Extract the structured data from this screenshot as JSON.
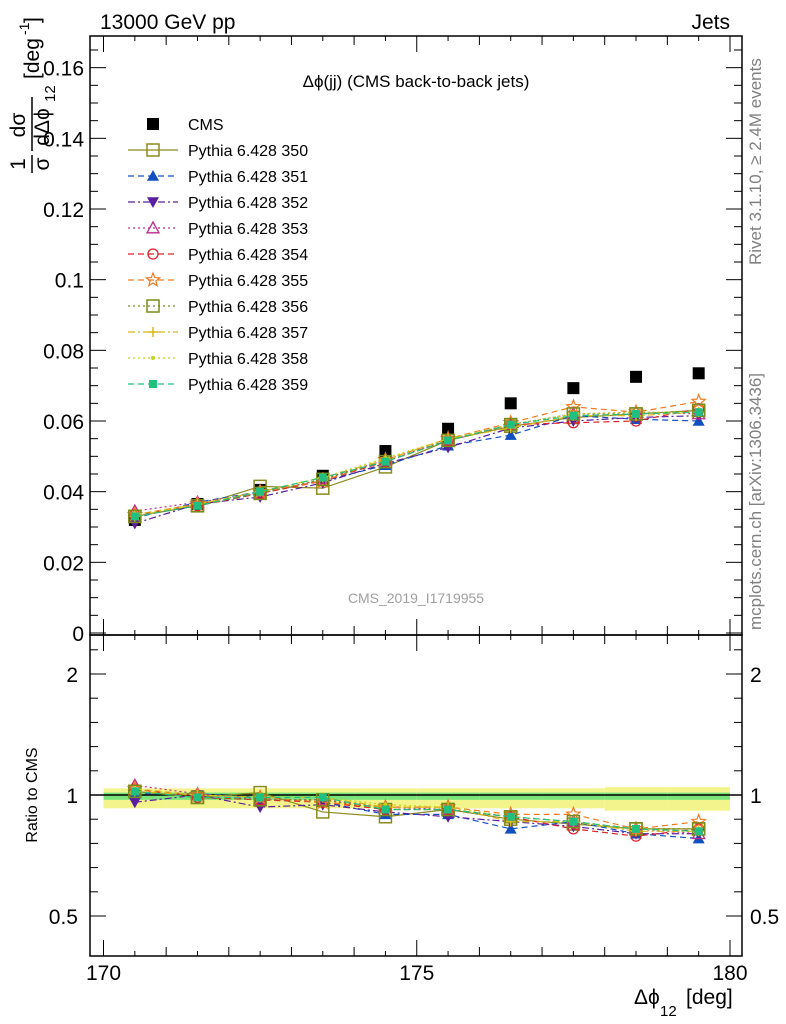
{
  "header": {
    "left": "13000 GeV pp",
    "right": "Jets"
  },
  "side_labels": {
    "rivet": "Rivet 3.1.10, ≥ 2.4M events",
    "mcplots": "mcplots.cern.ch [arXiv:1306.3436]"
  },
  "chart_data": [
    {
      "type": "scatter",
      "title": "Δϕ(jj) (CMS back-to-back jets)",
      "watermark": "CMS_2019_I1719955",
      "ylabel": "1/σ dσ/dΔϕ12 [deg⁻¹]",
      "ylabel_parts": {
        "num": "1",
        "den": "σ",
        "dnum": "dσ",
        "dden": "dΔϕ",
        "sub": "12",
        "unit": "[deg",
        "exp": "-1",
        "close": "]"
      },
      "xlabel": "Δϕ12 [deg]",
      "xlabel_parts": {
        "main": "Δϕ",
        "sub": "12",
        "unit": "[deg]"
      },
      "xlim": [
        170,
        180
      ],
      "ylim": [
        0,
        0.17
      ],
      "x_ticks": [
        "170",
        "175",
        "180"
      ],
      "y_ticks": [
        "0",
        "0.02",
        "0.04",
        "0.06",
        "0.08",
        "0.1",
        "0.12",
        "0.14",
        "0.16"
      ],
      "legend_position": "top-left",
      "x": [
        170.5,
        171.5,
        172.5,
        173.5,
        174.5,
        175.5,
        176.5,
        177.5,
        178.5,
        179.5
      ],
      "series": [
        {
          "name": "CMS",
          "color": "#000000",
          "marker": "square-filled",
          "line": "none",
          "values": [
            0.032,
            0.0365,
            0.0405,
            0.0445,
            0.0515,
            0.0578,
            0.065,
            0.0693,
            0.0725,
            0.0735
          ]
        },
        {
          "name": "Pythia 6.428 350",
          "color": "#8b8b1e",
          "marker": "square-open",
          "line": "solid",
          "values": [
            0.033,
            0.036,
            0.0415,
            0.041,
            0.047,
            0.0545,
            0.0585,
            0.061,
            0.062,
            0.063
          ]
        },
        {
          "name": "Pythia 6.428 351",
          "color": "#1050c0",
          "marker": "triangle-up-filled",
          "line": "dashed",
          "values": [
            0.0325,
            0.037,
            0.04,
            0.043,
            0.0475,
            0.053,
            0.056,
            0.0615,
            0.0605,
            0.06
          ]
        },
        {
          "name": "Pythia 6.428 352",
          "color": "#5a1ea0",
          "marker": "triangle-down-filled",
          "line": "dashdot",
          "values": [
            0.031,
            0.0365,
            0.0385,
            0.0425,
            0.048,
            0.0525,
            0.058,
            0.06,
            0.061,
            0.0615
          ]
        },
        {
          "name": "Pythia 6.428 353",
          "color": "#c02a8c",
          "marker": "triangle-up-open",
          "line": "dotted",
          "values": [
            0.0345,
            0.037,
            0.0395,
            0.0435,
            0.049,
            0.0545,
            0.059,
            0.062,
            0.0625,
            0.062
          ]
        },
        {
          "name": "Pythia 6.428 354",
          "color": "#e0202a",
          "marker": "circle-open",
          "line": "dashed",
          "values": [
            0.0335,
            0.036,
            0.0395,
            0.043,
            0.0485,
            0.0545,
            0.059,
            0.0595,
            0.06,
            0.0635
          ]
        },
        {
          "name": "Pythia 6.428 355",
          "color": "#f07a20",
          "marker": "star-open",
          "line": "dashed",
          "values": [
            0.0335,
            0.0365,
            0.04,
            0.043,
            0.049,
            0.055,
            0.0595,
            0.064,
            0.0625,
            0.0655
          ]
        },
        {
          "name": "Pythia 6.428 356",
          "color": "#7a8c1a",
          "marker": "square-open",
          "line": "dotted",
          "values": [
            0.033,
            0.036,
            0.0395,
            0.0435,
            0.0485,
            0.0545,
            0.059,
            0.062,
            0.062,
            0.063
          ]
        },
        {
          "name": "Pythia 6.428 357",
          "color": "#d8b81a",
          "marker": "tri-star",
          "line": "dashdot",
          "values": [
            0.033,
            0.0365,
            0.04,
            0.044,
            0.049,
            0.055,
            0.058,
            0.0615,
            0.0615,
            0.0625
          ]
        },
        {
          "name": "Pythia 6.428 358",
          "color": "#c0d81a",
          "marker": "dot",
          "line": "dotted",
          "values": [
            0.0335,
            0.0365,
            0.04,
            0.044,
            0.0495,
            0.055,
            0.059,
            0.062,
            0.0625,
            0.0625
          ]
        },
        {
          "name": "Pythia 6.428 359",
          "color": "#20c080",
          "marker": "square-filled-small",
          "line": "dashed",
          "values": [
            0.033,
            0.036,
            0.04,
            0.044,
            0.0485,
            0.0545,
            0.059,
            0.0615,
            0.062,
            0.0625
          ]
        }
      ]
    },
    {
      "type": "scatter",
      "ylabel": "Ratio to CMS",
      "xlim": [
        170,
        180
      ],
      "ylim": [
        0.35,
        2.3
      ],
      "y_ticks": [
        "0.5",
        "1",
        "2"
      ],
      "reference": 1,
      "band_colors": {
        "inner": "#7be37b",
        "outer": "#f4f48c"
      },
      "band_inner": [
        0.02,
        0.02,
        0.02,
        0.02,
        0.02,
        0.02,
        0.02,
        0.02,
        0.02,
        0.02
      ],
      "band_outer": [
        0.055,
        0.055,
        0.055,
        0.055,
        0.055,
        0.055,
        0.055,
        0.055,
        0.065,
        0.065
      ],
      "x": [
        170.5,
        171.5,
        172.5,
        173.5,
        174.5,
        175.5,
        176.5,
        177.5,
        178.5,
        179.5
      ],
      "series": [
        {
          "name": "Pythia 6.428 350",
          "values": [
            1.03,
            0.99,
            1.02,
            0.93,
            0.91,
            0.94,
            0.9,
            0.88,
            0.86,
            0.86
          ]
        },
        {
          "name": "Pythia 6.428 351",
          "values": [
            1.01,
            1.01,
            0.99,
            0.97,
            0.92,
            0.92,
            0.86,
            0.89,
            0.84,
            0.82
          ]
        },
        {
          "name": "Pythia 6.428 352",
          "values": [
            0.97,
            1.0,
            0.95,
            0.96,
            0.93,
            0.91,
            0.89,
            0.87,
            0.84,
            0.84
          ]
        },
        {
          "name": "Pythia 6.428 353",
          "values": [
            1.08,
            1.01,
            0.98,
            0.98,
            0.95,
            0.94,
            0.91,
            0.89,
            0.86,
            0.84
          ]
        },
        {
          "name": "Pythia 6.428 354",
          "values": [
            1.05,
            0.99,
            0.98,
            0.97,
            0.94,
            0.94,
            0.91,
            0.86,
            0.83,
            0.86
          ]
        },
        {
          "name": "Pythia 6.428 355",
          "values": [
            1.05,
            1.0,
            0.99,
            0.97,
            0.95,
            0.95,
            0.92,
            0.92,
            0.86,
            0.89
          ]
        },
        {
          "name": "Pythia 6.428 356",
          "values": [
            1.03,
            0.99,
            0.98,
            0.98,
            0.94,
            0.94,
            0.91,
            0.89,
            0.86,
            0.86
          ]
        },
        {
          "name": "Pythia 6.428 357",
          "values": [
            1.03,
            1.0,
            0.99,
            0.99,
            0.95,
            0.95,
            0.89,
            0.89,
            0.85,
            0.85
          ]
        },
        {
          "name": "Pythia 6.428 358",
          "values": [
            1.05,
            1.0,
            0.99,
            0.99,
            0.96,
            0.95,
            0.91,
            0.89,
            0.86,
            0.85
          ]
        },
        {
          "name": "Pythia 6.428 359",
          "values": [
            1.03,
            0.99,
            0.99,
            0.99,
            0.94,
            0.94,
            0.91,
            0.89,
            0.86,
            0.85
          ]
        }
      ]
    }
  ]
}
